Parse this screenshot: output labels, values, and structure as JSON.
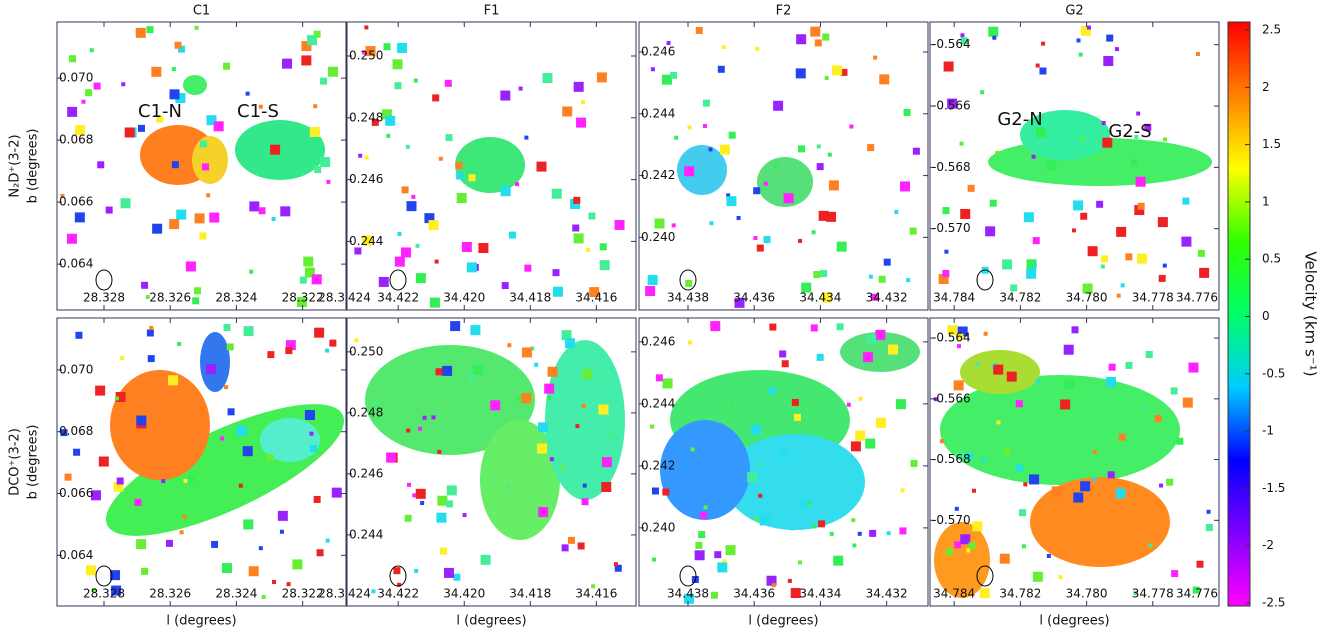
{
  "chart_data": [
    {
      "type": "heatmap",
      "title": "C1",
      "row_label": "N₂D⁺(3-2)",
      "ylabel": "b (degrees)",
      "annotations": [
        "C1-N",
        "C1-S"
      ],
      "xlim": [
        28.32942,
        28.32069
      ],
      "xticks": [
        28.328,
        28.326,
        28.324,
        28.322,
        {
          "value": 28.32,
          "label": "28.3"
        }
      ],
      "ylim": [
        0.06252,
        0.07181
      ],
      "yticks": [
        {
          "value": 0.07,
          "label": "0.070"
        },
        0.068,
        0.066,
        0.064
      ]
    },
    {
      "type": "heatmap",
      "title": "F1",
      "xlim": [
        34.42355,
        34.4148
      ],
      "xticks": [
        {
          "value": 34.424,
          "label": "424"
        },
        34.422,
        {
          "value": 34.42,
          "label": "34.420"
        },
        34.418,
        34.416
      ],
      "ylim": [
        0.24178,
        0.2511
      ],
      "yticks": [
        {
          "value": 0.25,
          "label": "0.250"
        },
        0.248,
        0.246,
        0.244
      ]
    },
    {
      "type": "heatmap",
      "title": "F2",
      "xlim": [
        34.43948,
        34.43075
      ],
      "xticks": [
        34.438,
        34.436,
        34.434,
        34.432
      ],
      "ylim": [
        0.23765,
        0.24697
      ],
      "yticks": [
        0.246,
        0.244,
        0.242,
        {
          "value": 0.24,
          "label": "0.240"
        }
      ]
    },
    {
      "type": "heatmap",
      "title": "G2",
      "annotations": [
        "G2-N",
        "G2-S"
      ],
      "xlim": [
        34.78473,
        34.776
      ],
      "xticks": [
        34.784,
        34.782,
        {
          "value": 34.78,
          "label": "34.780"
        },
        34.778,
        34.776
      ],
      "ylim": [
        -0.57265,
        -0.56326
      ],
      "yticks": [
        -0.564,
        -0.566,
        -0.568,
        {
          "value": -0.57,
          "label": "-0.570"
        }
      ]
    },
    {
      "type": "heatmap",
      "row_label": "DCO⁺(3-2)",
      "ylabel": "b (degrees)",
      "xlabel": "l (degrees)",
      "xlim": [
        28.32942,
        28.32069
      ],
      "xticks": [
        28.328,
        28.326,
        28.324,
        28.322,
        {
          "value": 28.32,
          "label": "28.3"
        }
      ],
      "ylim": [
        0.06236,
        0.07168
      ],
      "yticks": [
        {
          "value": 0.07,
          "label": "0.070"
        },
        0.068,
        0.066,
        0.064
      ]
    },
    {
      "type": "heatmap",
      "xlabel": "l (degrees)",
      "xlim": [
        34.42355,
        34.4148
      ],
      "xticks": [
        {
          "value": 34.424,
          "label": "424"
        },
        34.422,
        {
          "value": 34.42,
          "label": "34.420"
        },
        34.418,
        34.416
      ],
      "ylim": [
        0.24167,
        0.25111
      ],
      "yticks": [
        {
          "value": 0.25,
          "label": "0.250"
        },
        0.248,
        0.246,
        0.244
      ]
    },
    {
      "type": "heatmap",
      "xlabel": "l (degrees)",
      "xlim": [
        34.43948,
        34.43075
      ],
      "xticks": [
        34.438,
        34.436,
        34.434,
        34.432
      ],
      "ylim": [
        0.23748,
        0.24677
      ],
      "yticks": [
        0.246,
        0.244,
        0.242,
        {
          "value": 0.24,
          "label": "0.240"
        }
      ]
    },
    {
      "type": "heatmap",
      "xlabel": "l (degrees)",
      "xlim": [
        34.78473,
        34.776
      ],
      "xticks": [
        34.784,
        34.782,
        {
          "value": 34.78,
          "label": "34.780"
        },
        34.778,
        34.776
      ],
      "ylim": [
        -0.57282,
        -0.56334
      ],
      "yticks": [
        -0.564,
        -0.566,
        -0.568,
        {
          "value": -0.57,
          "label": "-0.570"
        }
      ]
    }
  ],
  "colorbar": {
    "label": "Velocity (km s⁻¹)",
    "lim": [
      -2.526,
      2.57
    ],
    "ticks": [
      2.5,
      2,
      1.5,
      1,
      0.5,
      0,
      -0.5,
      -1,
      -1.5,
      -2,
      -2.5
    ],
    "colors": [
      "#ff00ff",
      "#8000ff",
      "#0000ff",
      "#00ccff",
      "#00ff66",
      "#33ff00",
      "#ffff00",
      "#ff8000",
      "#ff0000"
    ]
  }
}
